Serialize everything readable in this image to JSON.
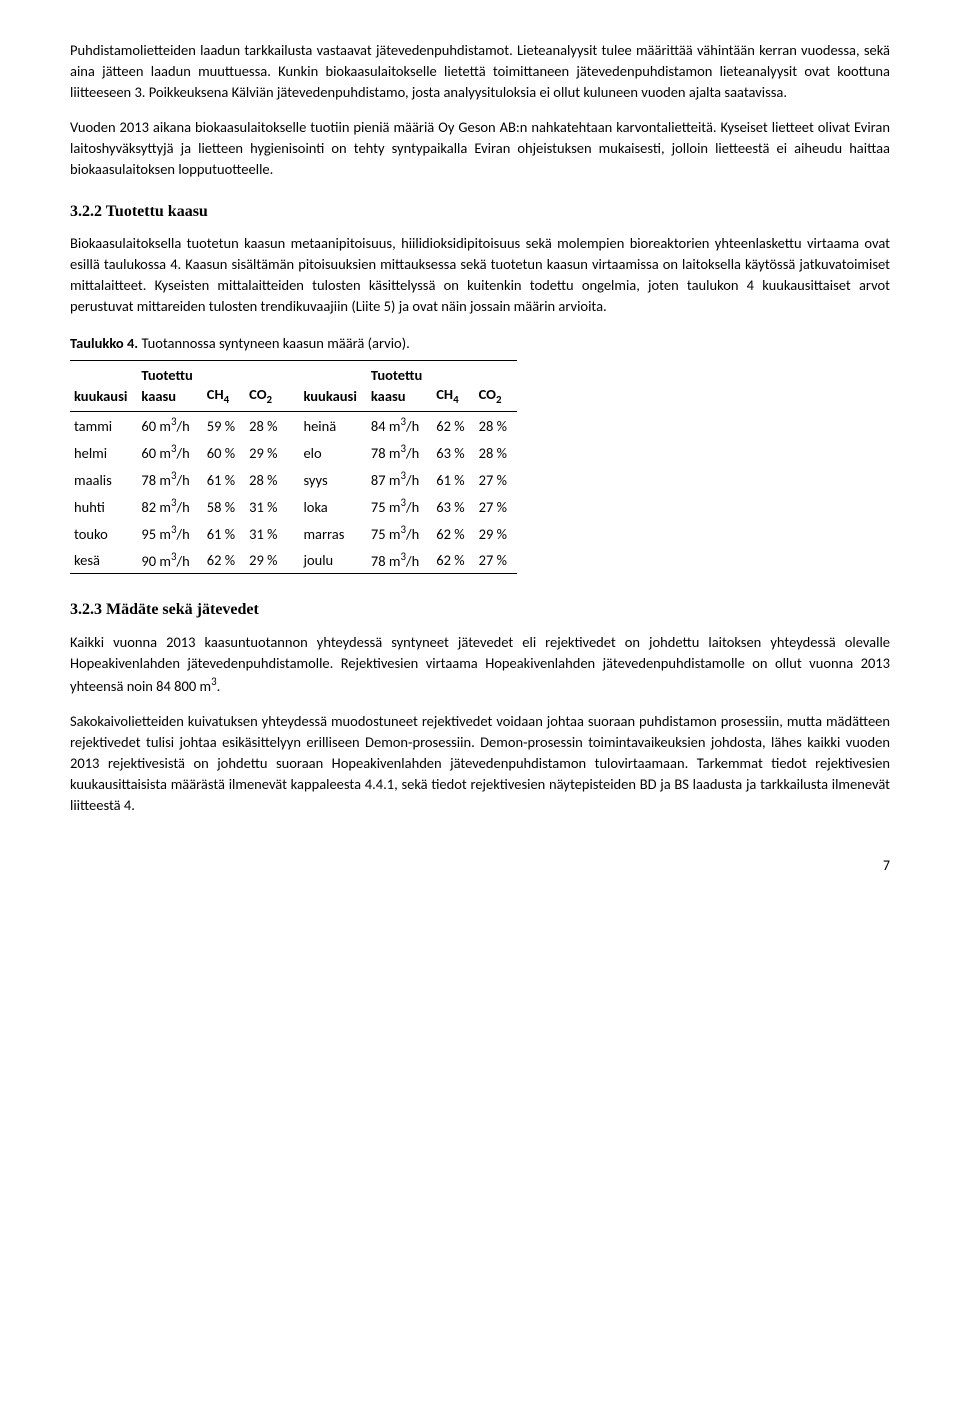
{
  "paragraphs": {
    "p1": "Puhdistamolietteiden laadun tarkkailusta vastaavat jätevedenpuhdistamot. Lieteanalyysit tulee määrittää vähintään kerran vuodessa, sekä aina jätteen laadun muuttuessa. Kunkin biokaasulaitokselle lietettä toimittaneen jätevedenpuhdistamon lieteanalyysit ovat koottuna liitteeseen 3. Poikkeuksena Kälviän jätevedenpuhdistamo, josta analyysituloksia ei ollut kuluneen vuoden ajalta saatavissa.",
    "p2": "Vuoden 2013 aikana biokaasulaitokselle tuotiin pieniä määriä Oy Geson AB:n nahkatehtaan karvontalietteitä. Kyseiset lietteet olivat Eviran laitoshyväksyttyjä ja lietteen hygienisointi on tehty syntypaikalla Eviran ohjeistuksen mukaisesti, jolloin lietteestä ei aiheudu haittaa biokaasulaitoksen lopputuotteelle.",
    "p3": "Biokaasulaitoksella tuotetun kaasun metaanipitoisuus, hiilidioksidipitoisuus sekä molempien bioreaktorien yhteenlaskettu virtaama ovat esillä taulukossa 4. Kaasun sisältämän pitoisuuksien mittauksessa sekä tuotetun kaasun virtaamissa on laitoksella käytössä jatkuvatoimiset mittalaitteet. Kyseisten mittalaitteiden tulosten käsittelyssä on kuitenkin todettu ongelmia, joten taulukon 4 kuukausittaiset arvot perustuvat mittareiden tulosten trendikuvaajiin (Liite 5) ja ovat näin jossain määrin arvioita.",
    "p4": "Kaikki vuonna 2013 kaasuntuotannon yhteydessä syntyneet jätevedet eli rejektivedet on johdettu laitoksen yhteydessä olevalle Hopeakivenlahden jätevedenpuhdistamolle. Rejektivesien virtaama Hopeakivenlahden jätevedenpuhdistamolle on ollut vuonna 2013 yhteensä noin 84 800 m",
    "p5": "Sakokaivolietteiden kuivatuksen yhteydessä muodostuneet rejektivedet voidaan johtaa suoraan puhdistamon prosessiin, mutta mädätteen rejektivedet tulisi johtaa esikäsittelyyn erilliseen Demon-prosessiin. Demon-prosessin toimintavaikeuksien johdosta, lähes kaikki vuoden 2013 rejektivesistä on johdettu suoraan Hopeakivenlahden jätevedenpuhdistamon tulovirtaamaan. Tarkemmat tiedot rejektivesien kuukausittaisista määrästä ilmenevät kappaleesta 4.4.1, sekä tiedot rejektivesien näytepisteiden BD ja BS laadusta ja tarkkailusta ilmenevät liitteestä 4."
  },
  "headings": {
    "h322": "3.2.2   Tuotettu kaasu",
    "h323": "3.2.3   Mädäte sekä jätevedet"
  },
  "tableCaption": {
    "label": "Taulukko 4.",
    "text": " Tuotannossa syntyneen kaasun määrä (arvio)."
  },
  "table": {
    "headers": {
      "c1": "kuukausi",
      "c2a": "Tuotettu",
      "c2b": "kaasu",
      "c3": "CH",
      "c4": "CO",
      "c5": "kuukausi",
      "c6a": "Tuotettu",
      "c6b": "kaasu",
      "c7": "CH",
      "c8": "CO"
    },
    "rows": [
      {
        "m1": "tammi",
        "g1": "60 m",
        "ch1": "59 %",
        "co1": "28 %",
        "m2": "heinä",
        "g2": "84 m",
        "ch2": "62 %",
        "co2": "28 %"
      },
      {
        "m1": "helmi",
        "g1": "60 m",
        "ch1": "60 %",
        "co1": "29 %",
        "m2": "elo",
        "g2": "78 m",
        "ch2": "63 %",
        "co2": "28 %"
      },
      {
        "m1": "maalis",
        "g1": "78 m",
        "ch1": "61 %",
        "co1": "28 %",
        "m2": "syys",
        "g2": "87 m",
        "ch2": "61 %",
        "co2": "27 %"
      },
      {
        "m1": "huhti",
        "g1": "82 m",
        "ch1": "58 %",
        "co1": "31 %",
        "m2": "loka",
        "g2": "75 m",
        "ch2": "63 %",
        "co2": "27 %"
      },
      {
        "m1": "touko",
        "g1": "95 m",
        "ch1": "61 %",
        "co1": "31 %",
        "m2": "marras",
        "g2": "75 m",
        "ch2": "62 %",
        "co2": "29 %"
      },
      {
        "m1": "kesä",
        "g1": "90 m",
        "ch1": "62 %",
        "co1": "29 %",
        "m2": "joulu",
        "g2": "78 m",
        "ch2": "62 %",
        "co2": "27 %"
      }
    ]
  },
  "pageNumber": "7"
}
